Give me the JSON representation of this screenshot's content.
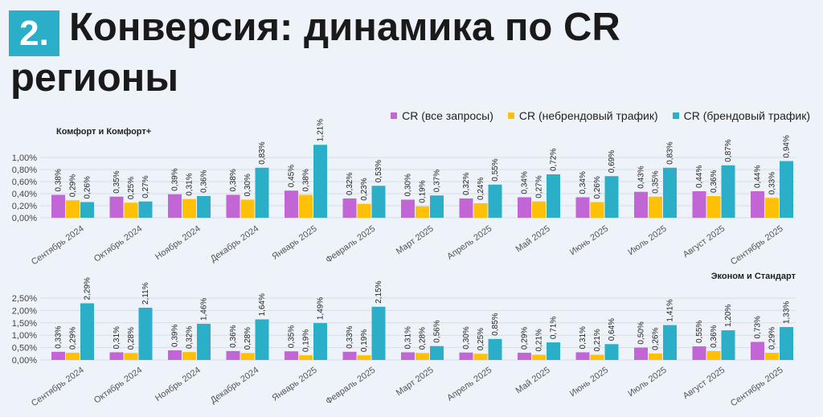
{
  "header": {
    "number": "2.",
    "title_line1": "Конверсия: динамика по CR",
    "title_line2": "регионы"
  },
  "legend": [
    {
      "label": "CR (все запросы)",
      "color": "#c266d6"
    },
    {
      "label": "CR (небрендовый трафик)",
      "color": "#ffc107"
    },
    {
      "label": "CR (брендовый трафик)",
      "color": "#2bafc9"
    }
  ],
  "chart_data": [
    {
      "type": "bar",
      "title": "Комфорт и Комфорт+",
      "categories": [
        "Сентябрь 2024",
        "Октябрь 2024",
        "Ноябрь 2024",
        "Декабрь 2024",
        "Январь 2025",
        "Февраль 2025",
        "Март 2025",
        "Апрель 2025",
        "Май 2025",
        "Июнь 2025",
        "Июль 2025",
        "Август 2025",
        "Сентябрь 2025"
      ],
      "yticks": [
        "0,00%",
        "0,20%",
        "0,40%",
        "0,60%",
        "0,80%",
        "1,00%"
      ],
      "ylim": [
        0,
        1.2
      ],
      "series": [
        {
          "name": "CR (все запросы)",
          "values": [
            0.38,
            0.35,
            0.39,
            0.38,
            0.45,
            0.32,
            0.3,
            0.32,
            0.34,
            0.34,
            0.43,
            0.44,
            0.44
          ],
          "labels": [
            "0,38%",
            "0,35%",
            "0,39%",
            "0,38%",
            "0,45%",
            "0,32%",
            "0,30%",
            "0,32%",
            "0,34%",
            "0,34%",
            "0,43%",
            "0,44%",
            "0,44%"
          ]
        },
        {
          "name": "CR (небрендовый трафик)",
          "values": [
            0.29,
            0.25,
            0.31,
            0.3,
            0.38,
            0.23,
            0.19,
            0.24,
            0.27,
            0.26,
            0.35,
            0.36,
            0.33
          ],
          "labels": [
            "0,29%",
            "0,25%",
            "0,31%",
            "0,30%",
            "0,38%",
            "0,23%",
            "0,19%",
            "0,24%",
            "0,27%",
            "0,26%",
            "0,35%",
            "0,36%",
            "0,33%"
          ]
        },
        {
          "name": "CR (брендовый трафик)",
          "values": [
            0.26,
            0.27,
            0.36,
            0.83,
            1.21,
            0.53,
            0.37,
            0.55,
            0.72,
            0.69,
            0.83,
            0.87,
            0.94
          ],
          "labels": [
            "0,26%",
            "0,27%",
            "0,36%",
            "0,83%",
            "1,21%",
            "0,53%",
            "0,37%",
            "0,55%",
            "0,72%",
            "0,69%",
            "0,83%",
            "0,87%",
            "0,94%"
          ]
        }
      ]
    },
    {
      "type": "bar",
      "title": "Эконом и Стандарт",
      "categories": [
        "Сентябрь 2024",
        "Октябрь 2024",
        "Ноябрь 2024",
        "Декабрь 2024",
        "Январь 2025",
        "Февраль 2025",
        "Март 2025",
        "Апрель 2025",
        "Май 2025",
        "Июнь 2025",
        "Июль 2025",
        "Август 2025",
        "Сентябрь 2025"
      ],
      "yticks": [
        "0,00%",
        "0,50%",
        "1,00%",
        "1,50%",
        "2,00%",
        "2,50%"
      ],
      "ylim": [
        0,
        3.0
      ],
      "series": [
        {
          "name": "CR (все запросы)",
          "values": [
            0.33,
            0.31,
            0.39,
            0.36,
            0.35,
            0.33,
            0.31,
            0.3,
            0.29,
            0.31,
            0.5,
            0.55,
            0.73
          ],
          "labels": [
            "0,33%",
            "0,31%",
            "0,39%",
            "0,36%",
            "0,35%",
            "0,33%",
            "0,31%",
            "0,30%",
            "0,29%",
            "0,31%",
            "0,50%",
            "0,55%",
            "0,73%"
          ]
        },
        {
          "name": "CR (небрендовый трафик)",
          "values": [
            0.29,
            0.28,
            0.32,
            0.28,
            0.19,
            0.19,
            0.28,
            0.25,
            0.21,
            0.21,
            0.26,
            0.36,
            0.29
          ],
          "labels": [
            "0,29%",
            "0,28%",
            "0,32%",
            "0,28%",
            "0,19%",
            "0,19%",
            "0,28%",
            "0,25%",
            "0,21%",
            "0,21%",
            "0,26%",
            "0,36%",
            "0,29%"
          ]
        },
        {
          "name": "CR (брендовый трафик)",
          "values": [
            2.29,
            2.11,
            1.46,
            1.64,
            1.49,
            2.15,
            0.56,
            0.85,
            0.71,
            0.64,
            1.41,
            1.2,
            1.33
          ],
          "labels": [
            "2,29%",
            "2,11%",
            "1,46%",
            "1,64%",
            "1,49%",
            "2,15%",
            "0,56%",
            "0,85%",
            "0,71%",
            "0,64%",
            "1,41%",
            "1,20%",
            "1,33%"
          ]
        }
      ]
    }
  ]
}
